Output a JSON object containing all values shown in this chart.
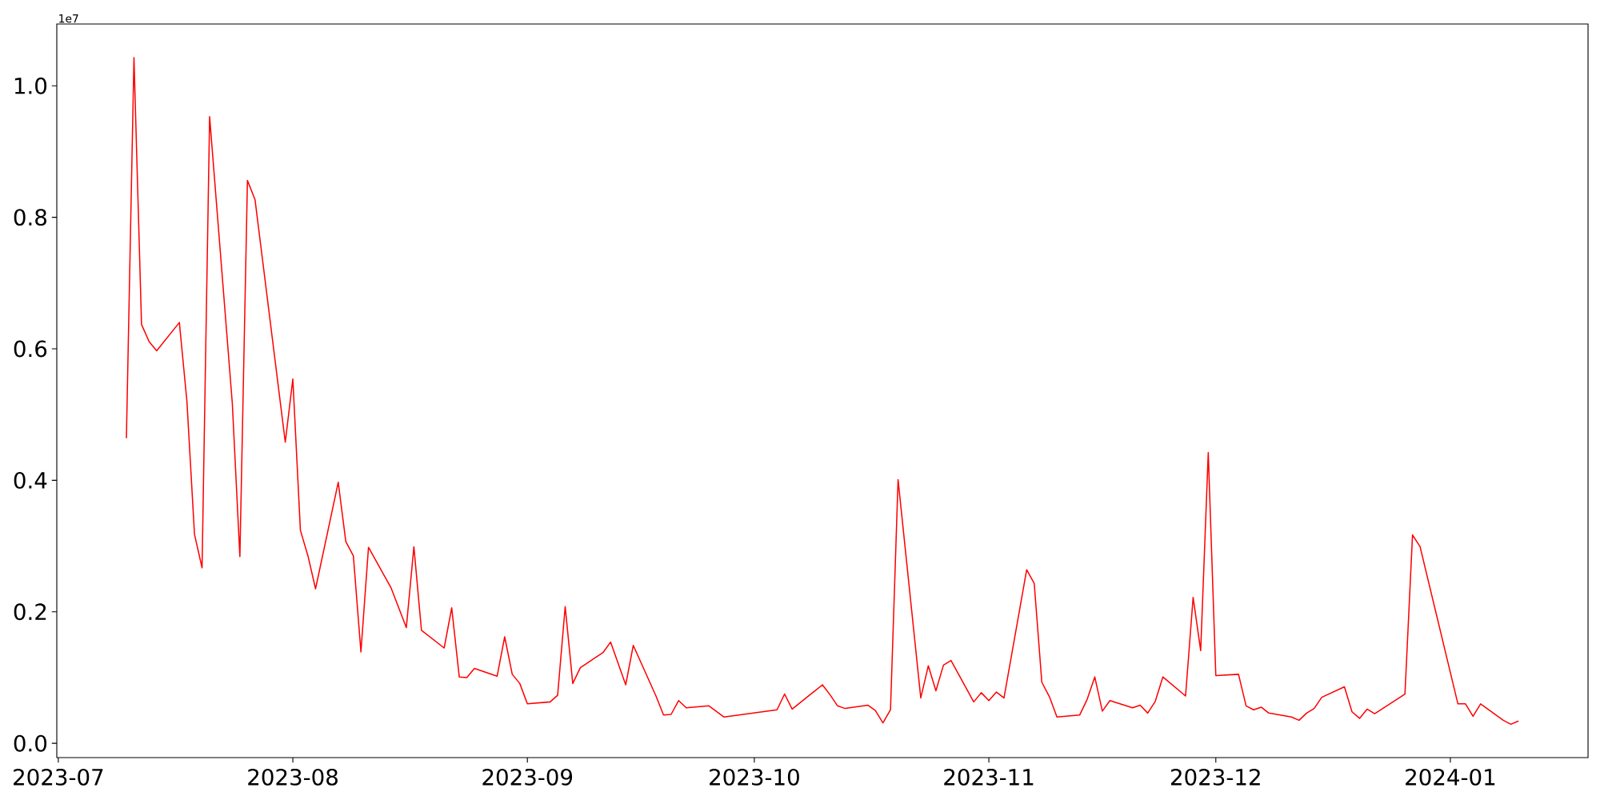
{
  "chart_data": {
    "type": "line",
    "x": [
      "2023-07-10",
      "2023-07-11",
      "2023-07-12",
      "2023-07-13",
      "2023-07-14",
      "2023-07-17",
      "2023-07-18",
      "2023-07-19",
      "2023-07-20",
      "2023-07-21",
      "2023-07-24",
      "2023-07-25",
      "2023-07-26",
      "2023-07-27",
      "2023-07-31",
      "2023-08-01",
      "2023-08-02",
      "2023-08-03",
      "2023-08-04",
      "2023-08-07",
      "2023-08-08",
      "2023-08-09",
      "2023-08-10",
      "2023-08-11",
      "2023-08-14",
      "2023-08-16",
      "2023-08-17",
      "2023-08-18",
      "2023-08-21",
      "2023-08-22",
      "2023-08-23",
      "2023-08-24",
      "2023-08-25",
      "2023-08-28",
      "2023-08-29",
      "2023-08-30",
      "2023-08-31",
      "2023-09-01",
      "2023-09-04",
      "2023-09-05",
      "2023-09-06",
      "2023-09-07",
      "2023-09-08",
      "2023-09-11",
      "2023-09-12",
      "2023-09-14",
      "2023-09-15",
      "2023-09-18",
      "2023-09-19",
      "2023-09-20",
      "2023-09-21",
      "2023-09-22",
      "2023-09-25",
      "2023-09-27",
      "2023-10-04",
      "2023-10-05",
      "2023-10-06",
      "2023-10-10",
      "2023-10-11",
      "2023-10-12",
      "2023-10-13",
      "2023-10-16",
      "2023-10-17",
      "2023-10-18",
      "2023-10-19",
      "2023-10-20",
      "2023-10-23",
      "2023-10-24",
      "2023-10-25",
      "2023-10-26",
      "2023-10-27",
      "2023-10-30",
      "2023-10-31",
      "2023-11-01",
      "2023-11-02",
      "2023-11-03",
      "2023-11-06",
      "2023-11-07",
      "2023-11-08",
      "2023-11-09",
      "2023-11-10",
      "2023-11-13",
      "2023-11-14",
      "2023-11-15",
      "2023-11-16",
      "2023-11-17",
      "2023-11-20",
      "2023-11-21",
      "2023-11-22",
      "2023-11-23",
      "2023-11-24",
      "2023-11-27",
      "2023-11-28",
      "2023-11-29",
      "2023-11-30",
      "2023-12-01",
      "2023-12-04",
      "2023-12-05",
      "2023-12-06",
      "2023-12-07",
      "2023-12-08",
      "2023-12-11",
      "2023-12-12",
      "2023-12-13",
      "2023-12-14",
      "2023-12-15",
      "2023-12-18",
      "2023-12-19",
      "2023-12-20",
      "2023-12-21",
      "2023-12-22",
      "2023-12-26",
      "2023-12-27",
      "2023-12-28",
      "2024-01-02",
      "2024-01-03",
      "2024-01-04",
      "2024-01-05",
      "2024-01-08",
      "2024-01-09",
      "2024-01-10"
    ],
    "series": [
      {
        "color": "#ff0000",
        "values": [
          0.464,
          1.043,
          0.637,
          0.611,
          0.597,
          0.64,
          0.52,
          0.318,
          0.267,
          0.953,
          0.517,
          0.284,
          0.856,
          0.827,
          0.458,
          0.554,
          0.324,
          0.285,
          0.235,
          0.397,
          0.307,
          0.285,
          0.139,
          0.298,
          0.236,
          0.176,
          0.299,
          0.172,
          0.145,
          0.206,
          0.101,
          0.1,
          0.114,
          0.102,
          0.162,
          0.105,
          0.091,
          0.06,
          0.063,
          0.073,
          0.208,
          0.091,
          0.115,
          0.138,
          0.154,
          0.089,
          0.149,
          0.072,
          0.043,
          0.044,
          0.065,
          0.054,
          0.057,
          0.04,
          0.051,
          0.075,
          0.052,
          0.089,
          0.074,
          0.057,
          0.053,
          0.058,
          0.05,
          0.031,
          0.051,
          0.401,
          0.069,
          0.118,
          0.08,
          0.119,
          0.126,
          0.063,
          0.077,
          0.065,
          0.078,
          0.069,
          0.264,
          0.243,
          0.093,
          0.071,
          0.04,
          0.043,
          0.067,
          0.101,
          0.049,
          0.065,
          0.054,
          0.058,
          0.046,
          0.064,
          0.101,
          0.072,
          0.222,
          0.141,
          0.442,
          0.103,
          0.105,
          0.057,
          0.051,
          0.055,
          0.046,
          0.04,
          0.035,
          0.046,
          0.053,
          0.07,
          0.086,
          0.048,
          0.038,
          0.052,
          0.045,
          0.075,
          0.317,
          0.299,
          0.06,
          0.06,
          0.041,
          0.06,
          0.035,
          0.029,
          0.034
        ]
      }
    ],
    "xlim": [
      "2023-06-30T19:12",
      "2024-01-19T04:48"
    ],
    "xticks": [
      {
        "value": "2023-07-01",
        "label": "2023-07"
      },
      {
        "value": "2023-08-01",
        "label": "2023-08"
      },
      {
        "value": "2023-09-01",
        "label": "2023-09"
      },
      {
        "value": "2023-10-01",
        "label": "2023-10"
      },
      {
        "value": "2023-11-01",
        "label": "2023-11"
      },
      {
        "value": "2023-12-01",
        "label": "2023-12"
      },
      {
        "value": "2024-01-01",
        "label": "2024-01"
      }
    ],
    "ylim": [
      -0.0217,
      1.094
    ],
    "yticks": [
      {
        "value": 0,
        "label": "0.0"
      },
      0.2,
      0.4,
      0.6,
      0.8,
      {
        "value": 1,
        "label": "1.0"
      }
    ],
    "annotations": [
      "1e7"
    ]
  }
}
